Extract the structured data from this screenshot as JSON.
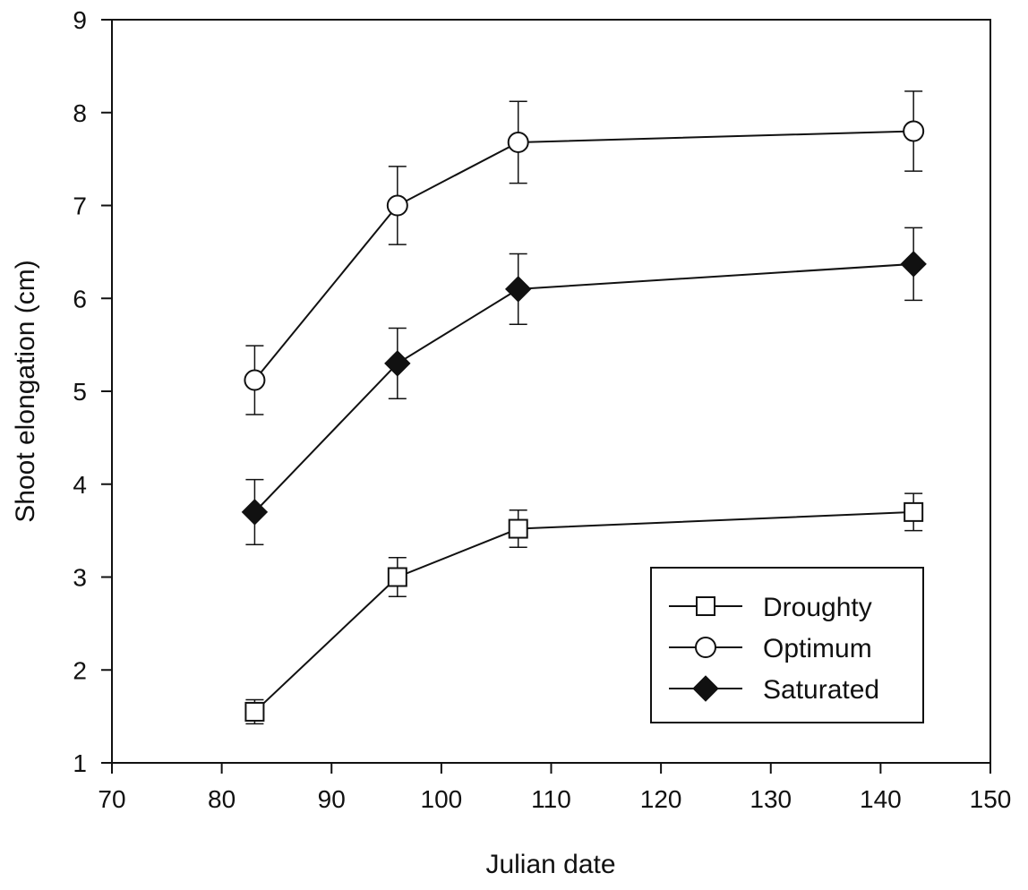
{
  "chart_data": {
    "type": "line",
    "xlabel": "Julian date",
    "ylabel": "Shoot elongation (cm)",
    "xlim": [
      70,
      150
    ],
    "ylim": [
      1,
      9
    ],
    "xticks": [
      70,
      80,
      90,
      100,
      110,
      120,
      130,
      140,
      150
    ],
    "yticks": [
      1,
      2,
      3,
      4,
      5,
      6,
      7,
      8,
      9
    ],
    "grid": false,
    "legend_position": "bottom-right",
    "series": [
      {
        "name": "Droughty",
        "marker": "open-square",
        "x": [
          83,
          96,
          107,
          143
        ],
        "y": [
          1.55,
          3.0,
          3.52,
          3.7
        ],
        "error": [
          0.13,
          0.21,
          0.2,
          0.2
        ]
      },
      {
        "name": "Optimum",
        "marker": "open-circle",
        "x": [
          83,
          96,
          107,
          143
        ],
        "y": [
          5.12,
          7.0,
          7.68,
          7.8
        ],
        "error": [
          0.37,
          0.42,
          0.44,
          0.43
        ]
      },
      {
        "name": "Saturated",
        "marker": "filled-diamond",
        "x": [
          83,
          96,
          107,
          143
        ],
        "y": [
          3.7,
          5.3,
          6.1,
          6.37
        ],
        "error": [
          0.35,
          0.38,
          0.38,
          0.39
        ]
      }
    ]
  }
}
